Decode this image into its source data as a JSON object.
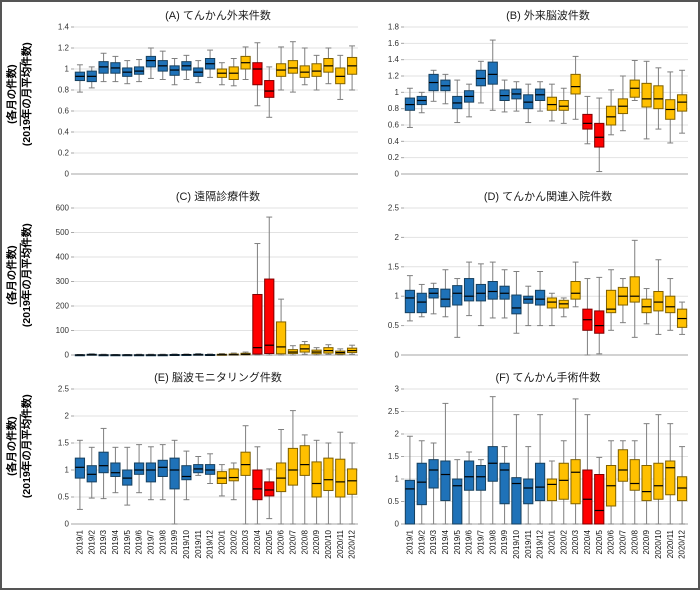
{
  "figure": {
    "ylabel": {
      "numerator": "(各月の件数)",
      "denominator": "(2019年の月平均件数)"
    }
  },
  "categories": [
    "2019/1",
    "2019/2",
    "2019/3",
    "2019/4",
    "2019/5",
    "2019/6",
    "2019/7",
    "2019/8",
    "2019/9",
    "2019/10",
    "2019/11",
    "2019/12",
    "2020/1",
    "2020/2",
    "2020/3",
    "2020/4",
    "2020/5",
    "2020/6",
    "2020/7",
    "2020/8",
    "2020/9",
    "2020/10",
    "2020/11",
    "2020/12"
  ],
  "emergency_months": [
    "2020/4",
    "2020/5"
  ],
  "colors": {
    "blue": "#1F72B8",
    "blue_border": "#17405E",
    "gold": "#FFC000",
    "gold_border": "#7F6000",
    "red": "#FF0000",
    "red_border": "#7F0000",
    "median": "#000000",
    "whisker": "#7F7F7F",
    "gridline": "#E2E2E2",
    "axis": "#A6A6A6",
    "tick_text": "#333333"
  },
  "chart_data": [
    {
      "panel": "A",
      "type": "box",
      "title": "(A) てんかん外来件数",
      "ylim": [
        0,
        1.4
      ],
      "ytick": 0.2,
      "boxes": [
        [
          0.78,
          0.89,
          0.93,
          0.97,
          1.04
        ],
        [
          0.82,
          0.88,
          0.93,
          0.98,
          1.02
        ],
        [
          0.88,
          0.96,
          1.02,
          1.07,
          1.15
        ],
        [
          0.88,
          0.96,
          1.01,
          1.06,
          1.12
        ],
        [
          0.86,
          0.93,
          0.97,
          1.01,
          1.08
        ],
        [
          0.88,
          0.95,
          0.98,
          1.02,
          1.09
        ],
        [
          0.91,
          1.02,
          1.08,
          1.12,
          1.2
        ],
        [
          0.9,
          0.98,
          1.03,
          1.08,
          1.17
        ],
        [
          0.85,
          0.94,
          0.99,
          1.03,
          1.1
        ],
        [
          0.9,
          0.99,
          1.03,
          1.07,
          1.13
        ],
        [
          0.87,
          0.93,
          0.97,
          1.01,
          1.08
        ],
        [
          0.92,
          1.0,
          1.05,
          1.1,
          1.18
        ],
        [
          0.85,
          0.92,
          0.96,
          1.0,
          1.06
        ],
        [
          0.84,
          0.9,
          0.96,
          1.02,
          1.1
        ],
        [
          0.9,
          1.0,
          1.06,
          1.12,
          1.21
        ],
        [
          0.65,
          0.85,
          1.0,
          1.06,
          1.25
        ],
        [
          0.54,
          0.73,
          0.79,
          0.89,
          1.02
        ],
        [
          0.8,
          0.93,
          0.99,
          1.05,
          1.21
        ],
        [
          0.78,
          0.96,
          1.01,
          1.08,
          1.26
        ],
        [
          0.85,
          0.92,
          0.97,
          1.03,
          1.2
        ],
        [
          0.8,
          0.93,
          0.98,
          1.05,
          1.13
        ],
        [
          0.86,
          0.97,
          1.03,
          1.1,
          1.2
        ],
        [
          0.71,
          0.86,
          0.93,
          1.01,
          1.13
        ],
        [
          0.8,
          0.95,
          1.03,
          1.11,
          1.22
        ]
      ]
    },
    {
      "panel": "B",
      "type": "box",
      "title": "(B) 外来脳波件数",
      "ylim": [
        0,
        1.8
      ],
      "ytick": 0.2,
      "boxes": [
        [
          0.57,
          0.78,
          0.85,
          0.93,
          1.05
        ],
        [
          0.75,
          0.85,
          0.9,
          0.95,
          1.0
        ],
        [
          0.89,
          1.02,
          1.12,
          1.22,
          1.27
        ],
        [
          0.86,
          1.02,
          1.08,
          1.15,
          1.22
        ],
        [
          0.63,
          0.8,
          0.87,
          0.95,
          1.15
        ],
        [
          0.7,
          0.88,
          0.95,
          1.02,
          1.1
        ],
        [
          0.87,
          1.08,
          1.17,
          1.27,
          1.38
        ],
        [
          0.78,
          1.1,
          1.22,
          1.37,
          1.64
        ],
        [
          0.76,
          0.9,
          0.96,
          1.03,
          1.15
        ],
        [
          0.77,
          0.92,
          0.98,
          1.04,
          1.13
        ],
        [
          0.63,
          0.8,
          0.88,
          0.97,
          1.1
        ],
        [
          0.77,
          0.9,
          0.97,
          1.04,
          1.13
        ],
        [
          0.65,
          0.78,
          0.85,
          0.94,
          1.1
        ],
        [
          0.62,
          0.78,
          0.83,
          0.9,
          1.05
        ],
        [
          0.67,
          0.98,
          1.07,
          1.22,
          1.44
        ],
        [
          0.37,
          0.55,
          0.62,
          0.73,
          0.95
        ],
        [
          0.03,
          0.33,
          0.45,
          0.62,
          0.93
        ],
        [
          0.48,
          0.6,
          0.7,
          0.83,
          1.03
        ],
        [
          0.53,
          0.74,
          0.83,
          0.92,
          1.2
        ],
        [
          0.9,
          0.94,
          1.05,
          1.15,
          1.39
        ],
        [
          0.43,
          0.82,
          0.92,
          1.11,
          1.38
        ],
        [
          0.55,
          0.8,
          0.92,
          1.08,
          1.3
        ],
        [
          0.38,
          0.67,
          0.79,
          0.91,
          1.25
        ],
        [
          0.5,
          0.77,
          0.88,
          0.97,
          1.27
        ]
      ]
    },
    {
      "panel": "C",
      "type": "box",
      "title": "(C) 遠隔診療件数",
      "ylim": [
        0,
        600
      ],
      "ytick": 100,
      "boxes": [
        [
          0,
          0,
          0,
          1,
          2
        ],
        [
          0,
          0,
          1,
          3,
          5
        ],
        [
          0,
          0,
          0,
          1,
          3
        ],
        [
          0,
          0,
          0,
          1,
          2
        ],
        [
          0,
          0,
          0,
          1,
          2
        ],
        [
          0,
          0,
          0,
          1,
          3
        ],
        [
          0,
          0,
          0,
          1,
          3
        ],
        [
          0,
          0,
          0,
          1,
          3
        ],
        [
          0,
          0,
          0,
          2,
          4
        ],
        [
          0,
          0,
          1,
          2,
          4
        ],
        [
          0,
          0,
          1,
          3,
          6
        ],
        [
          0,
          0,
          0,
          2,
          4
        ],
        [
          0,
          0,
          1,
          3,
          6
        ],
        [
          0,
          0,
          1,
          4,
          8
        ],
        [
          0,
          1,
          3,
          7,
          12
        ],
        [
          0,
          4,
          30,
          247,
          455
        ],
        [
          0,
          6,
          40,
          310,
          563
        ],
        [
          0,
          5,
          33,
          135,
          228
        ],
        [
          0,
          6,
          12,
          22,
          38
        ],
        [
          3,
          12,
          25,
          42,
          55
        ],
        [
          0,
          5,
          12,
          20,
          30
        ],
        [
          3,
          8,
          18,
          30,
          42
        ],
        [
          0,
          4,
          10,
          16,
          25
        ],
        [
          3,
          10,
          18,
          28,
          40
        ]
      ]
    },
    {
      "panel": "D",
      "type": "box",
      "title": "(D) てんかん関連入院件数",
      "ylim": [
        0,
        2.5
      ],
      "ytick": 0.5,
      "boxes": [
        [
          0.58,
          0.72,
          0.97,
          1.1,
          1.35
        ],
        [
          0.65,
          0.72,
          0.9,
          1.05,
          1.2
        ],
        [
          0.7,
          0.97,
          1.05,
          1.13,
          1.22
        ],
        [
          0.65,
          0.82,
          0.95,
          1.12,
          1.45
        ],
        [
          0.3,
          0.85,
          1.05,
          1.18,
          1.3
        ],
        [
          0.67,
          0.92,
          1.0,
          1.3,
          1.58
        ],
        [
          0.5,
          0.92,
          1.05,
          1.2,
          1.55
        ],
        [
          0.63,
          0.95,
          1.08,
          1.25,
          1.58
        ],
        [
          0.63,
          0.95,
          1.05,
          1.17,
          1.45
        ],
        [
          0.37,
          0.7,
          0.8,
          1.02,
          1.42
        ],
        [
          0.5,
          0.88,
          0.95,
          1.0,
          1.17
        ],
        [
          0.5,
          0.85,
          0.95,
          1.1,
          1.42
        ],
        [
          0.5,
          0.8,
          0.9,
          0.97,
          1.05
        ],
        [
          0.65,
          0.8,
          0.87,
          0.93,
          0.97
        ],
        [
          0.82,
          0.95,
          1.05,
          1.25,
          1.58
        ],
        [
          0.0,
          0.42,
          0.6,
          0.78,
          1.3
        ],
        [
          0.02,
          0.37,
          0.5,
          0.75,
          1.32
        ],
        [
          0.42,
          0.72,
          0.78,
          1.1,
          1.45
        ],
        [
          0.55,
          0.85,
          1.0,
          1.15,
          1.3
        ],
        [
          0.3,
          0.9,
          1.0,
          1.33,
          1.95
        ],
        [
          0.53,
          0.72,
          0.82,
          0.95,
          1.13
        ],
        [
          0.35,
          0.75,
          0.9,
          1.08,
          1.62
        ],
        [
          0.42,
          0.72,
          0.82,
          1.0,
          1.3
        ],
        [
          0.35,
          0.47,
          0.62,
          0.78,
          0.9
        ]
      ]
    },
    {
      "panel": "E",
      "type": "box",
      "title": "(E) 脳波モニタリング件数",
      "ylim": [
        0,
        2.5
      ],
      "ytick": 0.5,
      "boxes": [
        [
          0.27,
          0.85,
          1.05,
          1.22,
          1.55
        ],
        [
          0.48,
          0.78,
          0.92,
          1.08,
          1.42
        ],
        [
          0.47,
          0.95,
          1.08,
          1.33,
          1.77
        ],
        [
          0.58,
          0.88,
          0.95,
          1.13,
          1.42
        ],
        [
          0.35,
          0.72,
          0.85,
          1.0,
          1.42
        ],
        [
          0.58,
          0.92,
          1.0,
          1.13,
          1.47
        ],
        [
          0.45,
          0.78,
          1.0,
          1.13,
          1.43
        ],
        [
          0.45,
          0.88,
          1.05,
          1.18,
          1.47
        ],
        [
          0.0,
          0.65,
          1.0,
          1.22,
          1.55
        ],
        [
          0.45,
          0.82,
          0.88,
          1.08,
          1.35
        ],
        [
          0.9,
          0.95,
          1.02,
          1.1,
          1.25
        ],
        [
          0.75,
          0.92,
          1.0,
          1.1,
          1.3
        ],
        [
          0.52,
          0.75,
          0.85,
          0.97,
          1.1
        ],
        [
          0.45,
          0.8,
          0.86,
          1.02,
          1.13
        ],
        [
          0.0,
          0.9,
          1.1,
          1.33,
          1.82
        ],
        [
          0.0,
          0.45,
          0.65,
          1.0,
          1.43
        ],
        [
          0.1,
          0.52,
          0.63,
          0.78,
          1.02
        ],
        [
          0.0,
          0.6,
          0.85,
          1.13,
          1.75
        ],
        [
          0.0,
          0.72,
          1.0,
          1.4,
          2.1
        ],
        [
          0.0,
          0.9,
          1.1,
          1.45,
          1.65
        ],
        [
          0.0,
          0.5,
          0.75,
          1.15,
          1.55
        ],
        [
          0.0,
          0.62,
          0.82,
          1.22,
          1.5
        ],
        [
          0.0,
          0.5,
          0.78,
          1.2,
          1.7
        ],
        [
          0.0,
          0.55,
          0.8,
          1.02,
          1.5
        ]
      ]
    },
    {
      "panel": "F",
      "type": "box",
      "title": "(F) てんかん手術件数",
      "ylim": [
        0,
        3
      ],
      "ytick": 0.5,
      "boxes": [
        [
          0,
          0,
          0.78,
          0.97,
          1.95
        ],
        [
          0,
          0.43,
          0.93,
          1.35,
          1.85
        ],
        [
          0,
          0.8,
          1.2,
          1.43,
          1.8
        ],
        [
          0,
          0.52,
          1.1,
          1.4,
          2.68
        ],
        [
          0,
          0,
          0.85,
          1.0,
          1.43
        ],
        [
          0,
          0.75,
          1.05,
          1.4,
          1.6
        ],
        [
          0,
          0.75,
          1.05,
          1.3,
          1.43
        ],
        [
          0,
          0.95,
          1.35,
          1.72,
          2.83
        ],
        [
          0,
          0.45,
          1.2,
          1.35,
          1.72
        ],
        [
          0,
          0,
          0.9,
          1.03,
          2.43
        ],
        [
          0,
          0.45,
          0.8,
          1.0,
          1.72
        ],
        [
          0,
          0.52,
          0.82,
          1.35,
          2.43
        ],
        [
          0,
          0.52,
          0.88,
          1.0,
          1.4
        ],
        [
          0,
          0.55,
          0.97,
          1.35,
          1.85
        ],
        [
          0,
          0.45,
          1.15,
          1.43,
          2.78
        ],
        [
          0,
          0,
          0.55,
          1.2,
          2.43
        ],
        [
          0,
          0,
          0.3,
          1.1,
          1.48
        ],
        [
          0,
          0.4,
          0.85,
          1.3,
          1.85
        ],
        [
          0,
          0.95,
          1.2,
          1.65,
          1.85
        ],
        [
          0,
          0.75,
          0.9,
          1.43,
          1.85
        ],
        [
          0,
          0.52,
          0.72,
          1.3,
          2.23
        ],
        [
          0,
          0.55,
          0.85,
          1.35,
          2.43
        ],
        [
          0,
          0.65,
          1.25,
          1.4,
          2.23
        ],
        [
          0,
          0.52,
          0.8,
          1.05,
          1.72
        ]
      ]
    }
  ]
}
